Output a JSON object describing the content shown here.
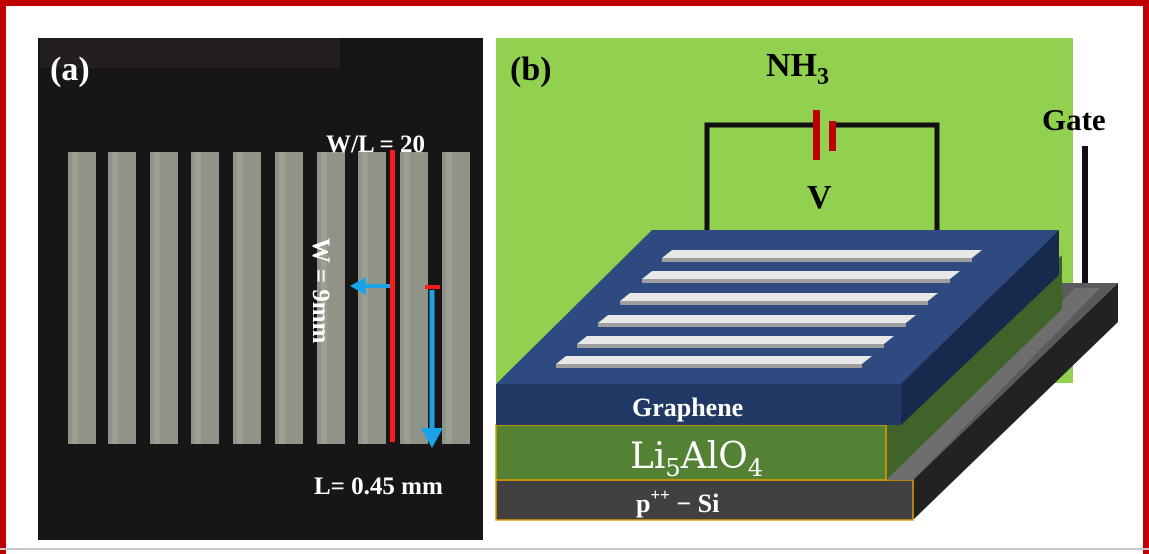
{
  "panel_a": {
    "label": "(a)",
    "ratio_label": "W/L = 20",
    "width_label": "W = 9mm",
    "length_label": "L= 0.45 mm",
    "colors": {
      "background": "#171515",
      "stripe": "#8f9388",
      "red_line": "#ff1a1a",
      "arrow": "#1ba3e8"
    }
  },
  "panel_b": {
    "label": "(b)",
    "gas_label": "NH",
    "gas_subscript": "3",
    "voltage_label": "V",
    "gate_label": "Gate",
    "graphene_label": "Graphene",
    "dielectric_label": "Li",
    "dielectric_sub1": "5",
    "dielectric_mid": "AlO",
    "dielectric_sub2": "4",
    "substrate_label": "p",
    "substrate_sup": "++",
    "substrate_suffix": " − Si",
    "colors": {
      "background": "#92d050",
      "graphene": "#203864",
      "dielectric": "#548235",
      "substrate": "#404040",
      "battery": "#c00000"
    }
  }
}
